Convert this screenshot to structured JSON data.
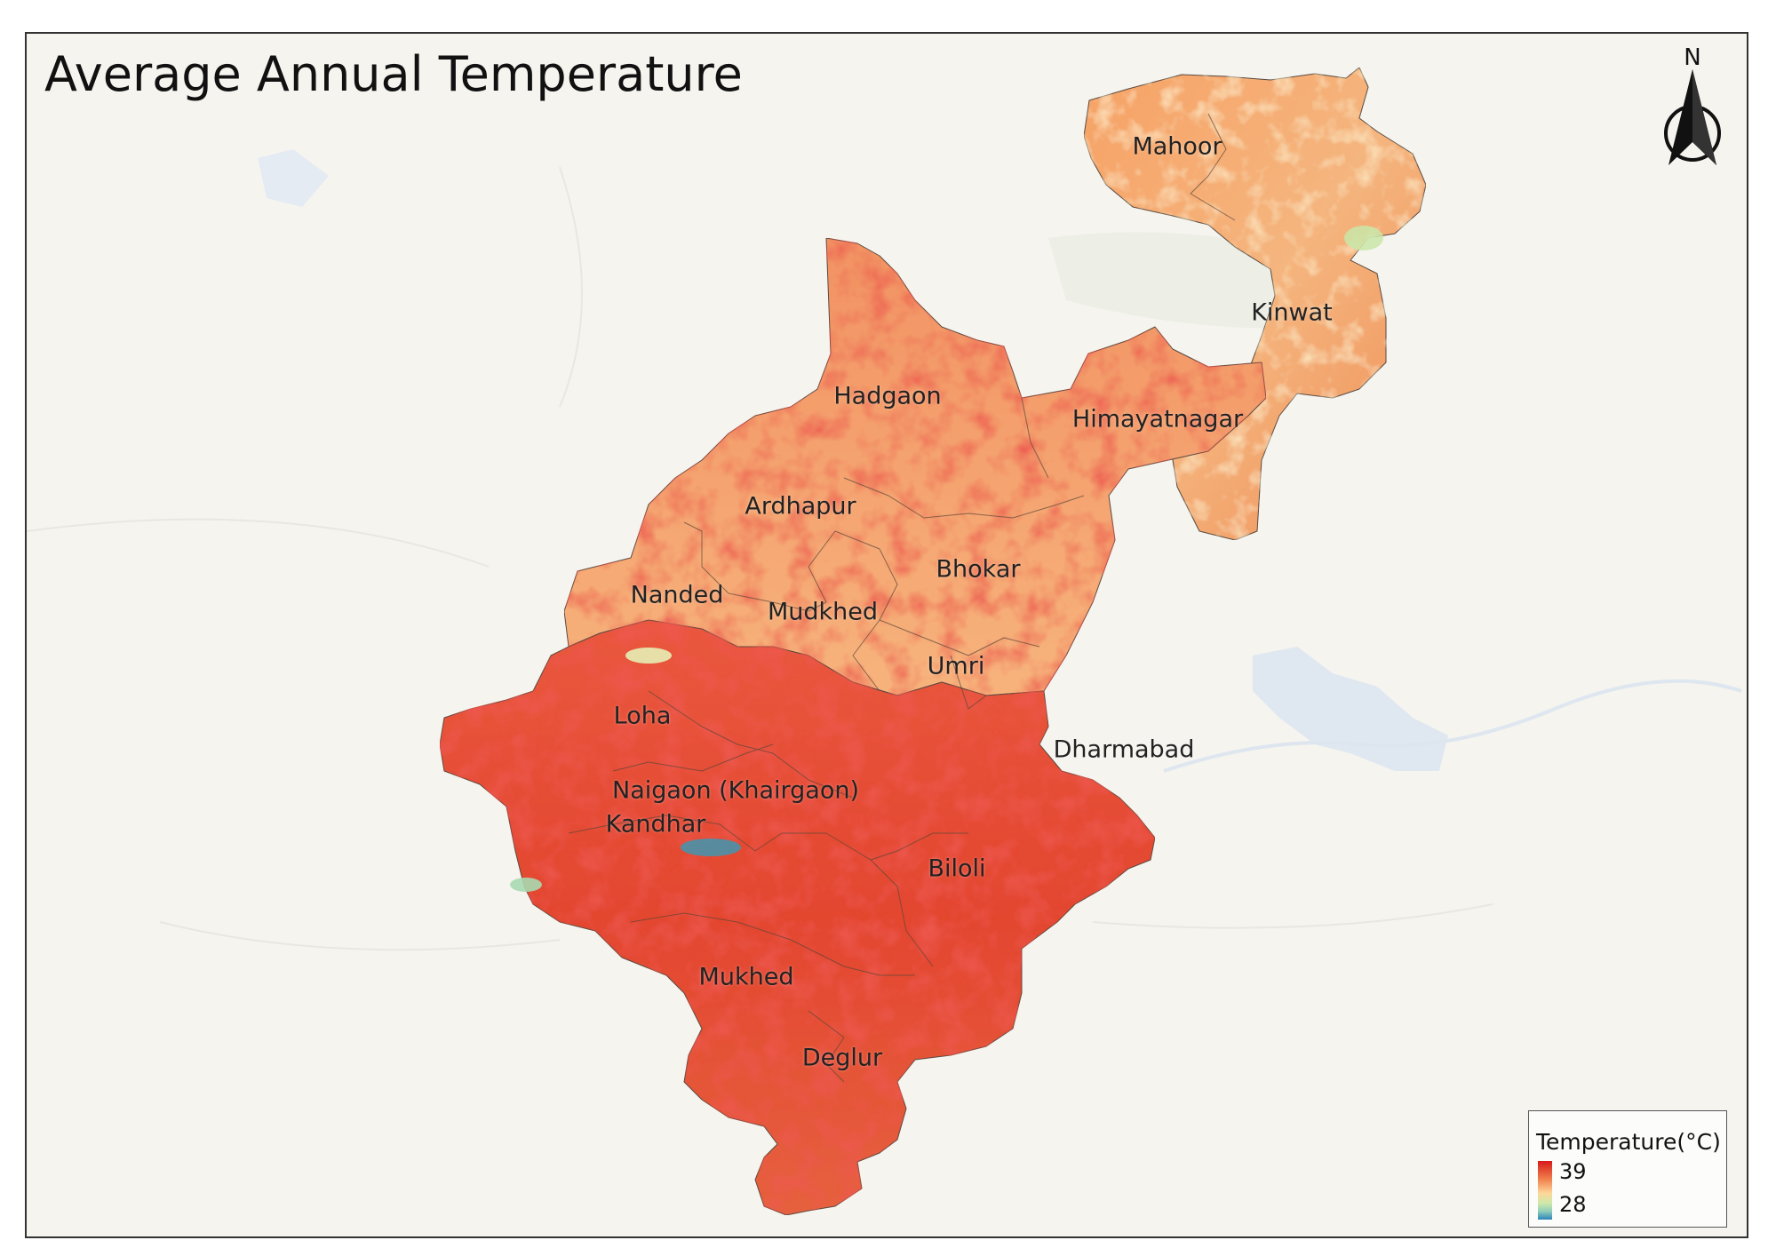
{
  "title": "Average Annual Temperature",
  "north_label": "N",
  "legend": {
    "title": "Temperature(°C)",
    "max_label": "39",
    "min_label": "28",
    "max_color": "#d7191c",
    "min_color": "#2b83ba"
  },
  "talukas": [
    {
      "key": "mahoor",
      "name": "Mahoor"
    },
    {
      "key": "kinwat",
      "name": "Kinwat"
    },
    {
      "key": "hadgaon",
      "name": "Hadgaon"
    },
    {
      "key": "himayatnagar",
      "name": "Himayatnagar"
    },
    {
      "key": "ardhapur",
      "name": "Ardhapur"
    },
    {
      "key": "bhokar",
      "name": "Bhokar"
    },
    {
      "key": "nanded",
      "name": "Nanded"
    },
    {
      "key": "mudkhed",
      "name": "Mudkhed"
    },
    {
      "key": "umri",
      "name": "Umri"
    },
    {
      "key": "loha",
      "name": "Loha"
    },
    {
      "key": "dharmabad",
      "name": "Dharmabad"
    },
    {
      "key": "naigaon",
      "name": "Naigaon (Khairgaon)"
    },
    {
      "key": "kandhar",
      "name": "Kandhar"
    },
    {
      "key": "biloli",
      "name": "Biloli"
    },
    {
      "key": "mukhed",
      "name": "Mukhed"
    },
    {
      "key": "deglur",
      "name": "Deglur"
    }
  ],
  "colors": {
    "background": "#f5f4ef",
    "hot": "#d7191c",
    "warm": "#f07c4a",
    "mild": "#fdd79a",
    "cool": "#2b83ba",
    "water": "#dfe8f3"
  }
}
